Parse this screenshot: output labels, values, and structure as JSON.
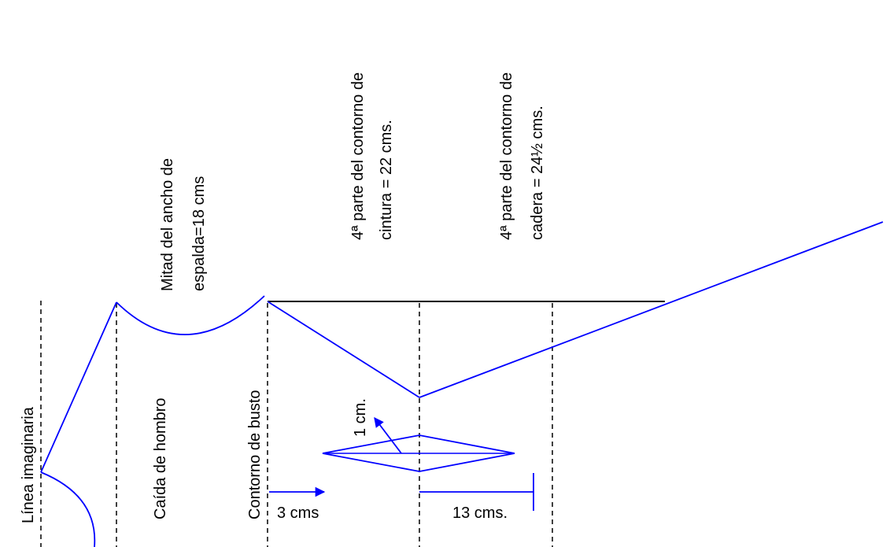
{
  "labels": {
    "linea_imaginaria": "Línea imaginaria",
    "caida_hombro": "Caída de hombro",
    "contorno_busto": "Contorno de busto",
    "espalda_line1": "Mitad del ancho de",
    "espalda_line2": "espalda=18 cms",
    "cintura_line1": "4ª parte del contorno de",
    "cintura_line2": "cintura = 22 cms.",
    "cadera_line1": "4ª parte del contorno de",
    "cadera_line2": "cadera = 24½ cms.",
    "dart_offset": "1 cm.",
    "busto_offset": "3 cms",
    "cadera_offset": "13 cms."
  },
  "colors": {
    "pattern": "#0000ff",
    "guides": "#000000",
    "text": "#000000"
  }
}
